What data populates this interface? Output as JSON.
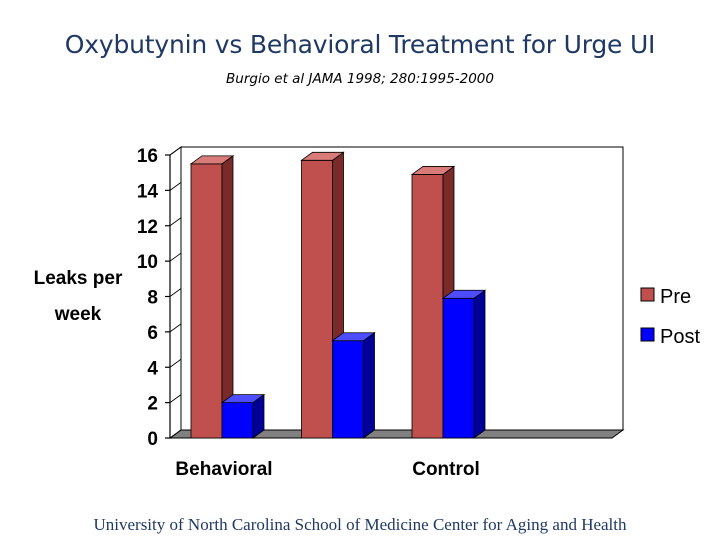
{
  "slide": {
    "title": "Oxybutynin vs Behavioral Treatment for Urge UI",
    "subtitle": "Burgio et al JAMA 1998; 280:1995-2000",
    "footer": "University of North Carolina School of Medicine Center for Aging and Health"
  },
  "colors": {
    "pre": "#c0504d",
    "pre_side": "#7a2a28",
    "pre_top": "#d97b79",
    "post": "#0000ff",
    "post_side": "#000099",
    "post_top": "#4d4dff",
    "title": "#1f3864"
  },
  "chart_data": {
    "type": "bar",
    "title": "",
    "xlabel": "",
    "ylabel": "Leaks per week",
    "ylim": [
      0,
      16
    ],
    "yticks": [
      0,
      2,
      4,
      6,
      8,
      10,
      12,
      14,
      16
    ],
    "categories": [
      "Behavioral",
      "",
      "Control"
    ],
    "category_labels": [
      "Behavioral",
      "Control"
    ],
    "series": [
      {
        "name": "Pre",
        "values": [
          15.5,
          15.7,
          14.9
        ]
      },
      {
        "name": "Post",
        "values": [
          2.0,
          5.5,
          7.9
        ]
      }
    ],
    "legend": [
      "Pre",
      "Post"
    ],
    "legend_position": "right"
  }
}
